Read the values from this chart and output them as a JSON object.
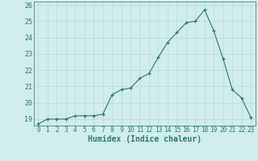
{
  "x": [
    0,
    1,
    2,
    3,
    4,
    5,
    6,
    7,
    8,
    9,
    10,
    11,
    12,
    13,
    14,
    15,
    16,
    17,
    18,
    19,
    20,
    21,
    22,
    23
  ],
  "y": [
    18.7,
    19.0,
    19.0,
    19.0,
    19.2,
    19.2,
    19.2,
    19.3,
    20.5,
    20.8,
    20.9,
    21.5,
    21.8,
    22.8,
    23.7,
    24.3,
    24.9,
    25.0,
    25.7,
    24.4,
    22.7,
    20.8,
    20.3,
    19.1
  ],
  "xlabel": "Humidex (Indice chaleur)",
  "ylim_min": 18.6,
  "ylim_max": 26.2,
  "yticks": [
    19,
    20,
    21,
    22,
    23,
    24,
    25,
    26
  ],
  "xtick_labels": [
    "0",
    "1",
    "2",
    "3",
    "4",
    "5",
    "6",
    "7",
    "8",
    "9",
    "10",
    "11",
    "12",
    "13",
    "14",
    "15",
    "16",
    "17",
    "18",
    "19",
    "20",
    "21",
    "22",
    "23"
  ],
  "line_color": "#2d7a6e",
  "marker": "+",
  "bg_color": "#d0eceb",
  "grid_color": "#c0d8d5",
  "label_color": "#2d7a6e",
  "tick_color": "#2d7a6e",
  "xlabel_fontsize": 7,
  "ytick_fontsize": 6,
  "xtick_fontsize": 5.5
}
